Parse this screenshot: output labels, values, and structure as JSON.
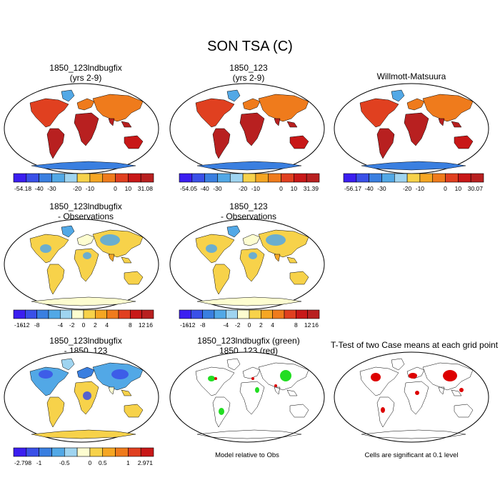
{
  "figure_title": "SON TSA (C)",
  "panels": [
    {
      "id": "p1",
      "title_line1": "1850_123lndbugfix",
      "title_line2": "(yrs 2-9)",
      "kind": "abs"
    },
    {
      "id": "p2",
      "title_line1": "1850_123",
      "title_line2": "(yrs 2-9)",
      "kind": "abs"
    },
    {
      "id": "p3",
      "title_line1": "Willmott-Matsuura",
      "title_line2": "",
      "kind": "abs"
    },
    {
      "id": "p4",
      "title_line1": "1850_123lndbugfix",
      "title_line2": "- Observations",
      "kind": "diff"
    },
    {
      "id": "p5",
      "title_line1": "1850_123",
      "title_line2": "- Observations",
      "kind": "diff"
    },
    {
      "id": "p7",
      "title_line1": "1850_123lndbugfix",
      "title_line2": "- 1850_123",
      "kind": "case"
    },
    {
      "id": "p8",
      "title_line1": "1850_123lndbugfix (green)",
      "title_line2": "1850_123 (red)",
      "kind": "rel"
    },
    {
      "id": "p9",
      "title_line1": "T-Test of two Case means at each grid point",
      "title_line2": "",
      "kind": "ttest"
    }
  ],
  "colorbars": [
    {
      "id": "cb1",
      "labels": [
        "-54.18",
        "-40",
        "-30",
        "-20",
        "-10",
        "0",
        "10",
        "31.08"
      ]
    },
    {
      "id": "cb2",
      "labels": [
        "-54.05",
        "-40",
        "-30",
        "-20",
        "-10",
        "0",
        "10",
        "31.39"
      ]
    },
    {
      "id": "cb3",
      "labels": [
        "-56.17",
        "-40",
        "-30",
        "-20",
        "-10",
        "0",
        "10",
        "30.07"
      ]
    },
    {
      "id": "cb4",
      "labels": [
        "-16",
        "-12",
        "-8",
        "-4",
        "-2",
        "0",
        "2",
        "4",
        "8",
        "12",
        "16"
      ]
    },
    {
      "id": "cb5",
      "labels": [
        "-16",
        "-12",
        "-8",
        "-4",
        "-2",
        "0",
        "2",
        "4",
        "8",
        "12",
        "16"
      ]
    },
    {
      "id": "cb7",
      "labels": [
        "-2.798",
        "-1",
        "-0.5",
        "0",
        "0.5",
        "1",
        "2.971"
      ]
    }
  ],
  "palettes": {
    "abs": [
      "#3b1ef0",
      "#3a50e8",
      "#3a7fe0",
      "#52a8e6",
      "#9fd4f0",
      "#f7d24a",
      "#f5a623",
      "#ef7b1c",
      "#e04020",
      "#c81818",
      "#b82020"
    ],
    "diff": [
      "#3b1ef0",
      "#3a50e8",
      "#3a7fe0",
      "#52a8e6",
      "#9fd4f0",
      "#fdfdd0",
      "#f7d24a",
      "#f5a623",
      "#ef7b1c",
      "#e04020",
      "#c81818",
      "#b82020"
    ],
    "case": [
      "#3b1ef0",
      "#3a50e8",
      "#3a7fe0",
      "#52a8e6",
      "#9fd4f0",
      "#fdfdd0",
      "#f7d24a",
      "#f5a623",
      "#ef7b1c",
      "#e04020",
      "#c81818"
    ],
    "green": "#22dd22",
    "red": "#dd0000"
  },
  "footnotes": {
    "rel": "Model relative to Obs",
    "ttest": "Cells are significant at 0.1 level"
  }
}
